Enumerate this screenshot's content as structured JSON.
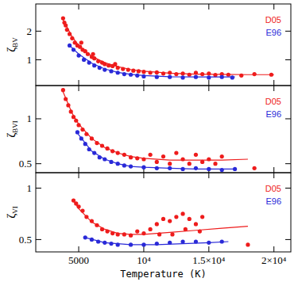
{
  "chart_data": [
    {
      "type": "scatter",
      "ylabel": "ζBV",
      "legend": "upper right",
      "tick_labels": "y",
      "xlim": [
        1700,
        21300
      ],
      "ylim": [
        0.1,
        2.95
      ],
      "xticks": [
        5000,
        {
          "value": 10000,
          "label": "10⁴"
        },
        {
          "value": 15000,
          "label": "1.5×10⁴"
        },
        {
          "value": 20000,
          "label": "2×10⁴"
        }
      ],
      "yticks": [
        1,
        2
      ],
      "series": [
        {
          "name": "D05",
          "color": "#ee1c1c",
          "marker": "circle",
          "x": [
            3800,
            3900,
            4000,
            4100,
            4300,
            4500,
            4700,
            4900,
            5100,
            5200,
            5300,
            5500,
            5700,
            6000,
            6100,
            6200,
            6500,
            6800,
            7000,
            7300,
            7600,
            7800,
            8000,
            8400,
            8800,
            9200,
            9600,
            10000,
            10500,
            11000,
            11500,
            12000,
            12500,
            13000,
            13500,
            14000,
            14500,
            15000,
            15500,
            16000,
            16500,
            17500,
            18500,
            19800
          ],
          "values": [
            2.45,
            2.3,
            2.2,
            2.05,
            1.9,
            1.75,
            1.6,
            1.5,
            1.45,
            1.6,
            1.35,
            1.3,
            1.2,
            1.1,
            1.2,
            1.05,
            0.95,
            0.9,
            0.85,
            0.8,
            0.78,
            0.85,
            0.72,
            0.68,
            0.65,
            0.62,
            0.6,
            0.58,
            0.55,
            0.56,
            0.52,
            0.55,
            0.5,
            0.52,
            0.48,
            0.55,
            0.5,
            0.52,
            0.47,
            0.5,
            0.48,
            0.45,
            0.5,
            0.48
          ]
        },
        {
          "name": "E96",
          "color": "#2a2ad8",
          "marker": "circle",
          "x": [
            4300,
            4600,
            5000,
            5400,
            5800,
            6200,
            6600,
            7000,
            7500,
            8000,
            8500,
            9000,
            9500,
            10000,
            11000,
            12000,
            13000,
            14000,
            15000,
            16000,
            16800
          ],
          "values": [
            1.5,
            1.35,
            1.15,
            1.0,
            0.9,
            0.8,
            0.72,
            0.65,
            0.6,
            0.55,
            0.5,
            0.48,
            0.45,
            0.42,
            0.4,
            0.4,
            0.38,
            0.4,
            0.38,
            0.4,
            0.38
          ]
        },
        {
          "type": "line",
          "color": "#ee1c1c",
          "x": [
            3800,
            4500,
            5000,
            6000,
            7000,
            8000,
            9000,
            10000,
            12000,
            14000,
            16000,
            18000,
            20000
          ],
          "values": [
            2.4,
            1.8,
            1.5,
            1.12,
            0.9,
            0.76,
            0.66,
            0.6,
            0.53,
            0.5,
            0.49,
            0.48,
            0.48
          ]
        },
        {
          "type": "line",
          "color": "#2a2ad8",
          "x": [
            4300,
            5000,
            6000,
            7000,
            8000,
            9000,
            10000,
            12000,
            14000,
            17000
          ],
          "values": [
            1.5,
            1.2,
            0.88,
            0.68,
            0.56,
            0.49,
            0.45,
            0.41,
            0.4,
            0.4
          ]
        }
      ]
    },
    {
      "type": "scatter",
      "ylabel": "ζBVI",
      "legend": "upper right",
      "tick_labels": "y",
      "xlim": [
        1700,
        21300
      ],
      "ylim": [
        0.4,
        1.37
      ],
      "xticks": [
        5000,
        {
          "value": 10000,
          "label": "10⁴"
        },
        {
          "value": 15000,
          "label": "1.5×10⁴"
        },
        {
          "value": 20000,
          "label": "2×10⁴"
        }
      ],
      "yticks": [
        0.5,
        1
      ],
      "series": [
        {
          "name": "D05",
          "color": "#ee1c1c",
          "marker": "circle",
          "x": [
            3800,
            4000,
            4200,
            4400,
            4600,
            4800,
            5000,
            5300,
            5600,
            6000,
            6400,
            6800,
            7200,
            7600,
            8000,
            8500,
            9000,
            9500,
            10000,
            10500,
            11000,
            11500,
            12000,
            12500,
            13000,
            13500,
            14000,
            14500,
            15000,
            15500,
            16000,
            18500
          ],
          "values": [
            1.32,
            1.22,
            1.15,
            1.08,
            1.02,
            0.98,
            0.93,
            0.88,
            0.83,
            0.78,
            0.73,
            0.7,
            0.67,
            0.64,
            0.62,
            0.6,
            0.57,
            0.56,
            0.55,
            0.6,
            0.52,
            0.58,
            0.5,
            0.62,
            0.55,
            0.5,
            0.6,
            0.52,
            0.55,
            0.5,
            0.58,
            0.45
          ]
        },
        {
          "name": "E96",
          "color": "#2a2ad8",
          "marker": "circle",
          "x": [
            4900,
            5200,
            5500,
            5800,
            6200,
            6600,
            7000,
            7500,
            8000,
            8500,
            9000,
            10000,
            11000,
            12000,
            13000,
            14000,
            15000,
            16000,
            17000
          ],
          "values": [
            0.85,
            0.78,
            0.72,
            0.66,
            0.62,
            0.57,
            0.55,
            0.52,
            0.5,
            0.48,
            0.47,
            0.46,
            0.45,
            0.45,
            0.44,
            0.45,
            0.44,
            0.43,
            0.44
          ]
        },
        {
          "type": "line",
          "color": "#ee1c1c",
          "x": [
            3800,
            4500,
            5000,
            6000,
            7000,
            8000,
            9000,
            10000,
            12000,
            14000,
            16000,
            18000
          ],
          "values": [
            1.3,
            1.06,
            0.94,
            0.78,
            0.68,
            0.62,
            0.58,
            0.56,
            0.54,
            0.54,
            0.54,
            0.55
          ]
        },
        {
          "type": "line",
          "color": "#2a2ad8",
          "x": [
            4900,
            6000,
            7000,
            8000,
            9000,
            10000,
            12000,
            14000,
            17000
          ],
          "values": [
            0.84,
            0.64,
            0.55,
            0.5,
            0.47,
            0.46,
            0.45,
            0.44,
            0.44
          ]
        }
      ]
    },
    {
      "type": "scatter",
      "ylabel": "ζVI",
      "xlabel": "Temperature (K)",
      "legend": "upper right",
      "xlim": [
        1700,
        21300
      ],
      "ylim": [
        0.38,
        1.15
      ],
      "xticks": [
        5000,
        {
          "value": 10000,
          "label": "10⁴"
        },
        {
          "value": 15000,
          "label": "1.5×10⁴"
        },
        {
          "value": 20000,
          "label": "2×10⁴"
        }
      ],
      "yticks": [
        0.5,
        1
      ],
      "series": [
        {
          "name": "D05",
          "color": "#ee1c1c",
          "marker": "circle",
          "x": [
            4600,
            4800,
            5000,
            5300,
            5600,
            6000,
            6400,
            6800,
            7200,
            7600,
            8000,
            8500,
            9000,
            9500,
            10000,
            10500,
            11000,
            11200,
            11500,
            12000,
            12200,
            12500,
            13000,
            13200,
            13500,
            14000,
            14300,
            14500,
            18000
          ],
          "values": [
            0.88,
            0.85,
            0.82,
            0.78,
            0.72,
            0.68,
            0.64,
            0.6,
            0.58,
            0.56,
            0.55,
            0.55,
            0.54,
            0.58,
            0.56,
            0.6,
            0.65,
            0.55,
            0.7,
            0.68,
            0.55,
            0.72,
            0.75,
            0.6,
            0.7,
            0.65,
            0.58,
            0.72,
            0.45
          ]
        },
        {
          "name": "E96",
          "color": "#2a2ad8",
          "marker": "circle",
          "x": [
            5500,
            6000,
            6500,
            7000,
            7500,
            8000,
            9000,
            10000,
            11000,
            12000,
            13000,
            14000,
            15000,
            16000
          ],
          "values": [
            0.52,
            0.5,
            0.48,
            0.47,
            0.46,
            0.45,
            0.45,
            0.45,
            0.46,
            0.47,
            0.48,
            0.48,
            0.47,
            0.48
          ]
        },
        {
          "type": "line",
          "color": "#ee1c1c",
          "x": [
            4600,
            5000,
            6000,
            7000,
            8000,
            9000,
            10000,
            12000,
            14000,
            16000,
            18000
          ],
          "values": [
            0.88,
            0.8,
            0.67,
            0.6,
            0.56,
            0.55,
            0.55,
            0.57,
            0.59,
            0.61,
            0.63
          ]
        },
        {
          "type": "line",
          "color": "#2a2ad8",
          "x": [
            5500,
            7000,
            9000,
            11000,
            13000,
            15000,
            16500
          ],
          "values": [
            0.52,
            0.47,
            0.45,
            0.45,
            0.46,
            0.47,
            0.48
          ]
        }
      ]
    }
  ]
}
